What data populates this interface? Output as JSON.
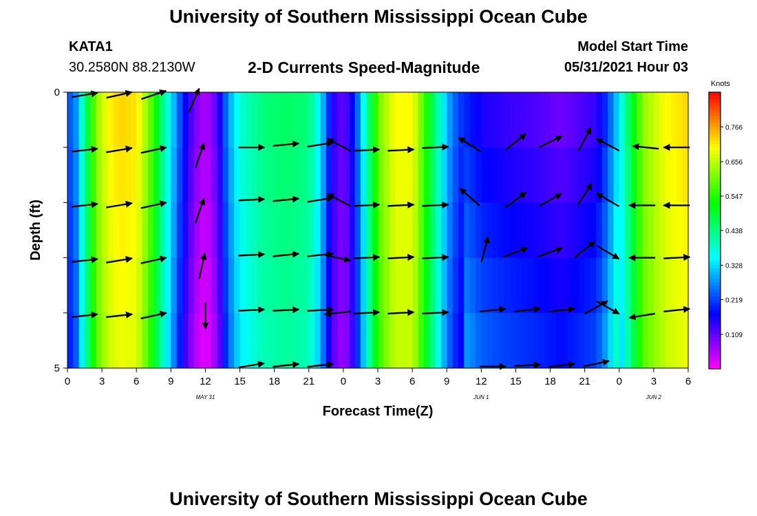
{
  "header": {
    "title": "University of Southern Mississippi Ocean Cube",
    "station": "KATA1",
    "coords": "30.2580N  88.2130W",
    "product": "2-D Currents Speed-Magnitude",
    "model_label": "Model Start Time",
    "model_time": "05/31/2021 Hour 03"
  },
  "footer": {
    "title": "University of Southern Mississippi Ocean Cube"
  },
  "chart_data": {
    "type": "heatmap",
    "title": "2-D Currents Speed-Magnitude",
    "xlabel": "Forecast Time(Z)",
    "ylabel": "Depth (ft)",
    "x_hours": [
      0,
      54
    ],
    "x_ticks": [
      "0",
      "3",
      "6",
      "9",
      "12",
      "15",
      "18",
      "21",
      "0",
      "3",
      "6",
      "9",
      "12",
      "15",
      "18",
      "21",
      "0",
      "3",
      "6"
    ],
    "date_labels": [
      {
        "label": "MAY 31",
        "hour": 12
      },
      {
        "label": "JUN 1",
        "hour": 36
      },
      {
        "label": "JUN 2",
        "hour": 51
      }
    ],
    "y_ticks": [
      "0",
      "5"
    ],
    "ylim": [
      0,
      5
    ],
    "colorbar": {
      "unit": "Knots",
      "ticks": [
        "0.766",
        "0.656",
        "0.547",
        "0.438",
        "0.328",
        "0.219",
        "0.109"
      ],
      "range": [
        0.0,
        0.876
      ]
    },
    "depth_rows": [
      0.5,
      1.5,
      2.5,
      3.5,
      4.5
    ],
    "speed_profile": [
      {
        "h": 0,
        "v": 0.22
      },
      {
        "h": 0.8,
        "v": 0.28
      },
      {
        "h": 1.5,
        "v": 0.44
      },
      {
        "h": 2.5,
        "v": 0.62
      },
      {
        "h": 3.5,
        "v": 0.7
      },
      {
        "h": 4.5,
        "v": 0.73
      },
      {
        "h": 6,
        "v": 0.72
      },
      {
        "h": 7,
        "v": 0.62
      },
      {
        "h": 8,
        "v": 0.48
      },
      {
        "h": 9,
        "v": 0.34
      },
      {
        "h": 10,
        "v": 0.2
      },
      {
        "h": 11,
        "v": 0.1
      },
      {
        "h": 12,
        "v": 0.05
      },
      {
        "h": 13,
        "v": 0.12
      },
      {
        "h": 14,
        "v": 0.28
      },
      {
        "h": 15,
        "v": 0.38
      },
      {
        "h": 17,
        "v": 0.44
      },
      {
        "h": 19,
        "v": 0.46
      },
      {
        "h": 21,
        "v": 0.44
      },
      {
        "h": 22,
        "v": 0.34
      },
      {
        "h": 23,
        "v": 0.16
      },
      {
        "h": 24,
        "v": 0.1
      },
      {
        "h": 25,
        "v": 0.2
      },
      {
        "h": 26,
        "v": 0.4
      },
      {
        "h": 27,
        "v": 0.6
      },
      {
        "h": 28.5,
        "v": 0.7
      },
      {
        "h": 30,
        "v": 0.7
      },
      {
        "h": 31,
        "v": 0.58
      },
      {
        "h": 32,
        "v": 0.44
      },
      {
        "h": 33,
        "v": 0.3
      },
      {
        "h": 34,
        "v": 0.22
      },
      {
        "h": 36,
        "v": 0.16
      },
      {
        "h": 38,
        "v": 0.14
      },
      {
        "h": 41,
        "v": 0.12
      },
      {
        "h": 43,
        "v": 0.1
      },
      {
        "h": 46,
        "v": 0.14
      },
      {
        "h": 47,
        "v": 0.22
      },
      {
        "h": 48,
        "v": 0.34
      },
      {
        "h": 49,
        "v": 0.48
      },
      {
        "h": 50,
        "v": 0.62
      },
      {
        "h": 52,
        "v": 0.7
      },
      {
        "h": 54,
        "v": 0.73
      }
    ],
    "arrows": [
      {
        "h": 1.5,
        "d": 0.05,
        "u": 0.9,
        "w": 0.15
      },
      {
        "h": 4.5,
        "d": 0.05,
        "u": 0.9,
        "w": 0.2
      },
      {
        "h": 7.5,
        "d": 0.05,
        "u": 0.9,
        "w": 0.3
      },
      {
        "h": 11.0,
        "d": 0.15,
        "u": 0.35,
        "w": 0.8
      },
      {
        "h": 1.5,
        "d": 1.05,
        "u": 0.9,
        "w": 0.1
      },
      {
        "h": 4.5,
        "d": 1.05,
        "u": 0.9,
        "w": 0.15
      },
      {
        "h": 7.5,
        "d": 1.05,
        "u": 0.9,
        "w": 0.2
      },
      {
        "h": 11.5,
        "d": 1.15,
        "u": 0.3,
        "w": 0.85
      },
      {
        "h": 16,
        "d": 1.0,
        "u": 1.0,
        "w": 0.0
      },
      {
        "h": 19,
        "d": 0.95,
        "u": 1.0,
        "w": 0.1
      },
      {
        "h": 22,
        "d": 0.95,
        "u": 0.95,
        "w": 0.15
      },
      {
        "h": 23.6,
        "d": 0.95,
        "u": -0.85,
        "w": 0.45
      },
      {
        "h": 26,
        "d": 1.05,
        "u": 0.95,
        "w": 0.05
      },
      {
        "h": 29,
        "d": 1.05,
        "u": 0.95,
        "w": 0.05
      },
      {
        "h": 32,
        "d": 1.0,
        "u": 0.95,
        "w": 0.05
      },
      {
        "h": 35,
        "d": 0.95,
        "u": -0.8,
        "w": 0.5
      },
      {
        "h": 39,
        "d": 0.9,
        "u": 0.75,
        "w": 0.6
      },
      {
        "h": 42,
        "d": 0.9,
        "u": 0.85,
        "w": 0.4
      },
      {
        "h": 45,
        "d": 0.85,
        "u": 0.45,
        "w": 0.85
      },
      {
        "h": 47,
        "d": 0.95,
        "u": -0.85,
        "w": 0.45
      },
      {
        "h": 50.3,
        "d": 1.0,
        "u": -0.95,
        "w": 0.1
      },
      {
        "h": 53,
        "d": 1.0,
        "u": -0.95,
        "w": 0.0
      },
      {
        "h": 1.5,
        "d": 2.05,
        "u": 0.9,
        "w": 0.1
      },
      {
        "h": 4.5,
        "d": 2.05,
        "u": 0.9,
        "w": 0.15
      },
      {
        "h": 7.5,
        "d": 2.05,
        "u": 0.9,
        "w": 0.2
      },
      {
        "h": 11.5,
        "d": 2.15,
        "u": 0.3,
        "w": 0.85
      },
      {
        "h": 16,
        "d": 1.95,
        "u": 1.0,
        "w": 0.05
      },
      {
        "h": 19,
        "d": 1.95,
        "u": 1.0,
        "w": 0.1
      },
      {
        "h": 22,
        "d": 1.95,
        "u": 0.95,
        "w": 0.15
      },
      {
        "h": 23.6,
        "d": 1.95,
        "u": -0.85,
        "w": 0.45
      },
      {
        "h": 26,
        "d": 2.05,
        "u": 0.95,
        "w": 0.05
      },
      {
        "h": 29,
        "d": 2.05,
        "u": 0.95,
        "w": 0.05
      },
      {
        "h": 32,
        "d": 2.05,
        "u": 0.95,
        "w": 0.05
      },
      {
        "h": 35,
        "d": 1.9,
        "u": -0.75,
        "w": 0.65
      },
      {
        "h": 39,
        "d": 1.95,
        "u": 0.75,
        "w": 0.55
      },
      {
        "h": 42,
        "d": 1.95,
        "u": 0.8,
        "w": 0.45
      },
      {
        "h": 45,
        "d": 1.85,
        "u": 0.55,
        "w": 0.85
      },
      {
        "h": 47,
        "d": 1.95,
        "u": -0.85,
        "w": 0.5
      },
      {
        "h": 50,
        "d": 2.05,
        "u": -0.95,
        "w": 0.0
      },
      {
        "h": 53,
        "d": 2.05,
        "u": -0.95,
        "w": 0.0
      },
      {
        "h": 1.5,
        "d": 3.05,
        "u": 0.9,
        "w": 0.1
      },
      {
        "h": 4.5,
        "d": 3.05,
        "u": 0.9,
        "w": 0.15
      },
      {
        "h": 7.5,
        "d": 3.05,
        "u": 0.9,
        "w": 0.2
      },
      {
        "h": 11.7,
        "d": 3.15,
        "u": 0.2,
        "w": 0.9
      },
      {
        "h": 16,
        "d": 2.95,
        "u": 1.0,
        "w": 0.05
      },
      {
        "h": 19,
        "d": 2.95,
        "u": 1.0,
        "w": 0.1
      },
      {
        "h": 22,
        "d": 2.95,
        "u": 0.95,
        "w": 0.1
      },
      {
        "h": 23.5,
        "d": 3.0,
        "u": 0.9,
        "w": -0.2
      },
      {
        "h": 26,
        "d": 3.0,
        "u": 0.95,
        "w": 0.05
      },
      {
        "h": 29,
        "d": 3.0,
        "u": 0.95,
        "w": 0.05
      },
      {
        "h": 32,
        "d": 3.0,
        "u": 0.95,
        "w": 0.05
      },
      {
        "h": 36.3,
        "d": 2.85,
        "u": 0.25,
        "w": 0.95
      },
      {
        "h": 39,
        "d": 2.9,
        "u": 0.8,
        "w": 0.3
      },
      {
        "h": 42,
        "d": 2.9,
        "u": 0.85,
        "w": 0.3
      },
      {
        "h": 45,
        "d": 2.85,
        "u": 0.7,
        "w": 0.55
      },
      {
        "h": 47,
        "d": 2.9,
        "u": 0.85,
        "w": -0.5
      },
      {
        "h": 50,
        "d": 3.0,
        "u": -0.95,
        "w": 0.0
      },
      {
        "h": 53,
        "d": 3.0,
        "u": 0.95,
        "w": 0.05
      },
      {
        "h": 1.5,
        "d": 4.05,
        "u": 0.9,
        "w": 0.1
      },
      {
        "h": 4.5,
        "d": 4.05,
        "u": 0.9,
        "w": 0.1
      },
      {
        "h": 7.5,
        "d": 4.05,
        "u": 0.9,
        "w": 0.2
      },
      {
        "h": 12,
        "d": 4.05,
        "u": 0.0,
        "w": -1.0
      },
      {
        "h": 16,
        "d": 3.95,
        "u": 1.0,
        "w": 0.05
      },
      {
        "h": 19,
        "d": 3.95,
        "u": 1.0,
        "w": 0.05
      },
      {
        "h": 22,
        "d": 3.95,
        "u": 0.95,
        "w": 0.05
      },
      {
        "h": 23.5,
        "d": 4.0,
        "u": -0.95,
        "w": -0.1
      },
      {
        "h": 26,
        "d": 4.0,
        "u": 0.95,
        "w": 0.05
      },
      {
        "h": 29,
        "d": 4.0,
        "u": 0.95,
        "w": 0.05
      },
      {
        "h": 32,
        "d": 4.0,
        "u": 0.95,
        "w": 0.05
      },
      {
        "h": 37,
        "d": 3.95,
        "u": 0.95,
        "w": 0.1
      },
      {
        "h": 40,
        "d": 3.95,
        "u": 0.95,
        "w": 0.1
      },
      {
        "h": 43,
        "d": 3.95,
        "u": 0.95,
        "w": 0.1
      },
      {
        "h": 46,
        "d": 3.9,
        "u": 0.8,
        "w": 0.45
      },
      {
        "h": 47,
        "d": 3.9,
        "u": 0.8,
        "w": -0.45
      },
      {
        "h": 50,
        "d": 4.05,
        "u": -0.95,
        "w": -0.15
      },
      {
        "h": 53,
        "d": 3.95,
        "u": 0.95,
        "w": 0.1
      },
      {
        "h": 16,
        "d": 4.95,
        "u": 0.95,
        "w": 0.15
      },
      {
        "h": 19,
        "d": 4.95,
        "u": 0.95,
        "w": 0.1
      },
      {
        "h": 22,
        "d": 4.95,
        "u": 0.95,
        "w": 0.1
      },
      {
        "h": 37,
        "d": 4.97,
        "u": 0.95,
        "w": 0.0
      },
      {
        "h": 40,
        "d": 4.95,
        "u": 0.95,
        "w": 0.05
      },
      {
        "h": 43,
        "d": 4.95,
        "u": 0.95,
        "w": 0.1
      },
      {
        "h": 46,
        "d": 4.92,
        "u": 0.95,
        "w": 0.2
      }
    ]
  }
}
